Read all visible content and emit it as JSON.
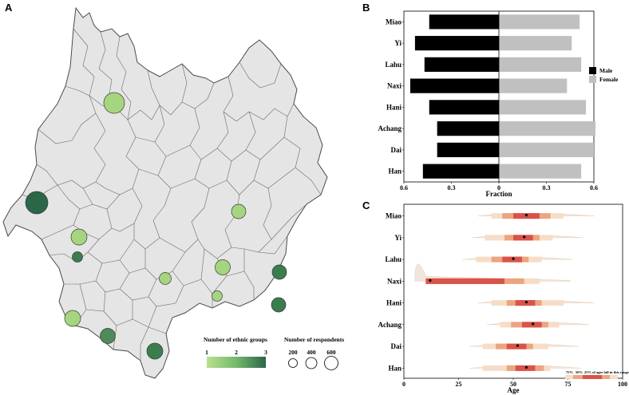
{
  "figure": {
    "panel_a_label": "A",
    "panel_b_label": "B",
    "panel_c_label": "C"
  },
  "map": {
    "legend_color_title": "Number of ethnic groups",
    "legend_color_ticks": [
      "1",
      "2",
      "3"
    ],
    "legend_size_title": "Number of respondents",
    "legend_size_ticks": [
      "200",
      "400",
      "600"
    ],
    "colors": {
      "low": "#9ed37a",
      "high": "#2f6b49",
      "region_fill": "#e5e5e5",
      "border": "#555555"
    }
  },
  "chart_data": [
    {
      "id": "sex-ratio",
      "type": "bar",
      "title": "",
      "xlabel": "Fraction",
      "ylabel": "",
      "categories": [
        "Miao",
        "Yi",
        "Lahu",
        "Naxi",
        "Hani",
        "Achang",
        "Dai",
        "Han"
      ],
      "series": [
        {
          "name": "Male",
          "color": "#000000",
          "values": [
            0.44,
            0.53,
            0.47,
            0.56,
            0.44,
            0.39,
            0.39,
            0.48
          ]
        },
        {
          "name": "Female",
          "color": "#c0c0c0",
          "values": [
            0.51,
            0.46,
            0.52,
            0.43,
            0.55,
            0.61,
            0.6,
            0.52
          ]
        }
      ],
      "xlim": [
        -0.6,
        0.6
      ],
      "xtick_values": [
        -0.6,
        -0.3,
        0,
        0.3,
        0.6
      ],
      "xtick_labels": [
        "0.6",
        "0.3",
        "0",
        "0.3",
        "0.6"
      ],
      "legend": [
        "Male",
        "Female"
      ],
      "legend_position": "right"
    },
    {
      "id": "age-distribution",
      "type": "area",
      "title": "",
      "xlabel": "Age",
      "ylabel": "",
      "categories": [
        "Miao",
        "Yi",
        "Lahu",
        "Naxi",
        "Hani",
        "Achang",
        "Dai",
        "Han"
      ],
      "median": [
        56,
        55,
        50,
        12,
        56,
        59,
        52,
        56
      ],
      "interval_25": [
        [
          50,
          62
        ],
        [
          50,
          59
        ],
        [
          45,
          54
        ],
        [
          10,
          46
        ],
        [
          51,
          60
        ],
        [
          54,
          63
        ],
        [
          47,
          56
        ],
        [
          51,
          60
        ]
      ],
      "interval_50": [
        [
          45,
          67
        ],
        [
          46,
          62
        ],
        [
          40,
          57
        ],
        [
          10,
          55
        ],
        [
          47,
          63
        ],
        [
          49,
          66
        ],
        [
          42,
          59
        ],
        [
          47,
          64
        ]
      ],
      "interval_75": [
        [
          40,
          73
        ],
        [
          37,
          68
        ],
        [
          33,
          63
        ],
        [
          10,
          62
        ],
        [
          40,
          73
        ],
        [
          44,
          71
        ],
        [
          36,
          66
        ],
        [
          36,
          67
        ]
      ],
      "density_peak": [
        0.04,
        0.04,
        0.04,
        0.9,
        0.04,
        0.04,
        0.04,
        0.04
      ],
      "xlim": [
        0,
        100
      ],
      "xticks": [
        0,
        25,
        50,
        75,
        100
      ],
      "legend": [
        "75%",
        "50%",
        "25% of ages fall in this range"
      ],
      "colors": [
        "#f6ddc7",
        "#eba57f",
        "#d9534a",
        "#f1e6dc"
      ]
    }
  ]
}
